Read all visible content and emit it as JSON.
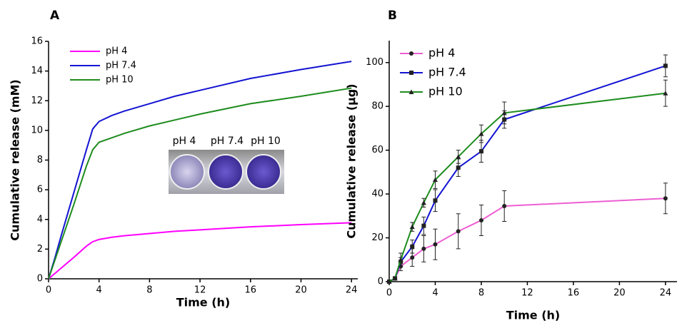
{
  "chart_data": [
    {
      "type": "line",
      "panel_label": "A",
      "x_label": "Time (h)",
      "y_label": "Cumulative release (mM)",
      "x": [
        0,
        0.5,
        1,
        2,
        3,
        3.5,
        4,
        5,
        6,
        8,
        10,
        12,
        16,
        20,
        24
      ],
      "series": [
        {
          "name": "pH 4",
          "color": "#ff00ff",
          "values": [
            0,
            0.36,
            0.72,
            1.44,
            2.2,
            2.5,
            2.65,
            2.8,
            2.9,
            3.05,
            3.2,
            3.3,
            3.5,
            3.65,
            3.78
          ]
        },
        {
          "name": "pH 7.4",
          "color": "#1414d2",
          "values": [
            0,
            1.4,
            2.9,
            5.8,
            8.7,
            10.1,
            10.6,
            11.0,
            11.3,
            11.8,
            12.3,
            12.7,
            13.5,
            14.1,
            14.65
          ]
        },
        {
          "name": "pH 10",
          "color": "#1e8c1e",
          "values": [
            0,
            1.25,
            2.5,
            5.0,
            7.6,
            8.7,
            9.2,
            9.5,
            9.8,
            10.3,
            10.7,
            11.1,
            11.8,
            12.3,
            12.85
          ]
        }
      ],
      "inset_labels": [
        "pH 4",
        "pH 7.4",
        "pH 10"
      ],
      "xlim": [
        0,
        24.5
      ],
      "xticks": [
        0,
        4,
        8,
        12,
        16,
        20,
        24
      ],
      "ylim": [
        0,
        16
      ],
      "yticks": [
        0,
        2,
        4,
        6,
        8,
        10,
        12,
        14,
        16
      ],
      "legend": "upper-left"
    },
    {
      "type": "errorline",
      "panel_label": "B",
      "x_label": "Time (h)",
      "y_label": "Cumulative release (μg)",
      "x": [
        0,
        0.5,
        1,
        2,
        3,
        4,
        6,
        8,
        10,
        24
      ],
      "series": [
        {
          "name": "pH 4",
          "color": "#ee5fd2",
          "marker": "circle",
          "values": [
            0,
            1.5,
            7,
            11,
            15,
            17,
            23,
            28,
            34.5,
            38
          ],
          "errors": [
            0,
            0.5,
            2,
            4,
            6,
            7,
            8,
            7,
            7,
            7
          ]
        },
        {
          "name": "pH 7.4",
          "color": "#1414d2",
          "marker": "square",
          "values": [
            0,
            1.5,
            9,
            16,
            25.5,
            37,
            52,
            59.5,
            74,
            98.5
          ],
          "errors": [
            0,
            0.5,
            2,
            3,
            4,
            5,
            4,
            5,
            4,
            5
          ]
        },
        {
          "name": "pH 10",
          "color": "#1e8c1e",
          "marker": "triangle",
          "values": [
            0,
            1.5,
            10,
            25,
            36,
            46.5,
            57,
            67.5,
            77,
            86
          ],
          "errors": [
            0,
            0.5,
            3,
            2,
            2,
            4,
            3,
            4,
            5,
            6
          ]
        }
      ],
      "xlim": [
        0,
        25
      ],
      "xticks": [
        0,
        4,
        8,
        12,
        16,
        20,
        24
      ],
      "ylim": [
        0,
        110
      ],
      "yticks": [
        0,
        20,
        40,
        60,
        80,
        100
      ],
      "legend": "upper-left"
    }
  ]
}
